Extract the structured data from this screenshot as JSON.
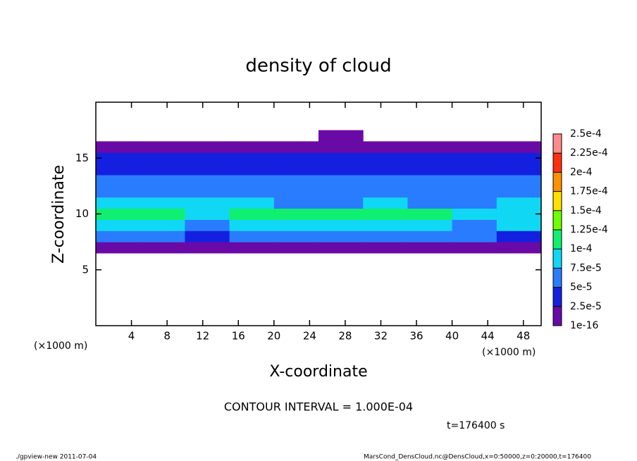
{
  "chart_data": {
    "type": "heatmap",
    "title": "density of cloud",
    "x_label": "X-coordinate",
    "y_label": "Z-coordinate",
    "x_unit_left": "(×1000 m)",
    "x_unit_right": "(×1000 m)",
    "contour_note": "CONTOUR INTERVAL = 1.000E-04",
    "time_note": "t=176400 s",
    "footer_left": "./gpview-new  2011-07-04",
    "footer_right": "MarsCond_DensCloud.nc@DensCloud,x=0:50000,z=0:20000,t=176400",
    "xlim": [
      0,
      50
    ],
    "ylim": [
      0,
      20
    ],
    "xticks": [
      4,
      8,
      12,
      16,
      20,
      24,
      28,
      32,
      36,
      40,
      44,
      48
    ],
    "yticks": [
      5,
      10,
      15
    ],
    "x_bins": [
      0,
      5,
      10,
      15,
      20,
      25,
      30,
      35,
      40,
      45,
      50
    ],
    "z_bins": [
      6.5,
      7.5,
      8.5,
      9.5,
      10.5,
      11.5,
      12.5,
      13.5,
      14.5,
      15.5,
      16.5,
      17.5
    ],
    "values": [
      [
        1e-05,
        1e-05,
        1e-05,
        1e-05,
        1e-05,
        1e-05,
        1e-05,
        1e-05,
        1e-05,
        1e-05
      ],
      [
        5e-05,
        5e-05,
        4e-05,
        5e-05,
        5e-05,
        5e-05,
        5e-05,
        5e-05,
        5e-05,
        4e-05
      ],
      [
        8e-05,
        8e-05,
        7e-05,
        8e-05,
        8e-05,
        8e-05,
        8e-05,
        8e-05,
        7e-05,
        8e-05
      ],
      [
        0.000105,
        0.000105,
        9e-05,
        0.000105,
        0.000105,
        0.000105,
        0.000105,
        0.000105,
        8e-05,
        9e-05
      ],
      [
        9e-05,
        8e-05,
        8e-05,
        8e-05,
        7e-05,
        7e-05,
        8e-05,
        7e-05,
        7e-05,
        8e-05
      ],
      [
        6e-05,
        6e-05,
        6e-05,
        6e-05,
        6e-05,
        6e-05,
        6e-05,
        6e-05,
        6e-05,
        6e-05
      ],
      [
        5e-05,
        5e-05,
        5e-05,
        5e-05,
        5e-05,
        5e-05,
        5e-05,
        5e-05,
        5e-05,
        5e-05
      ],
      [
        4e-05,
        4e-05,
        4e-05,
        4e-05,
        4e-05,
        4e-05,
        4e-05,
        4e-05,
        4e-05,
        4e-05
      ],
      [
        3e-05,
        3e-05,
        3e-05,
        3e-05,
        3e-05,
        3e-05,
        3e-05,
        3e-05,
        3e-05,
        3e-05
      ],
      [
        1e-05,
        1e-05,
        1e-05,
        1e-05,
        1e-05,
        1e-05,
        1e-05,
        1e-05,
        1e-05,
        1e-05
      ],
      [
        null,
        null,
        null,
        null,
        null,
        5e-06,
        null,
        null,
        null,
        null
      ]
    ],
    "levels": [
      {
        "value": 1e-16,
        "label": "1e-16"
      },
      {
        "value": 2.5e-05,
        "label": "2.5e-5"
      },
      {
        "value": 5e-05,
        "label": "5e-5"
      },
      {
        "value": 7.5e-05,
        "label": "7.5e-5"
      },
      {
        "value": 0.0001,
        "label": "1e-4"
      },
      {
        "value": 0.000125,
        "label": "1.25e-4"
      },
      {
        "value": 0.00015,
        "label": "1.5e-4"
      },
      {
        "value": 0.000175,
        "label": "1.75e-4"
      },
      {
        "value": 0.0002,
        "label": "2e-4"
      },
      {
        "value": 0.000225,
        "label": "2.25e-4"
      },
      {
        "value": 0.00025,
        "label": "2.5e-4"
      }
    ],
    "level_colors": [
      "#6a0aa6",
      "#1420e0",
      "#2a7cff",
      "#10d8f4",
      "#10f070",
      "#70ff00",
      "#ffe000",
      "#ff9000",
      "#ff3010",
      "#ff8c8c"
    ]
  }
}
